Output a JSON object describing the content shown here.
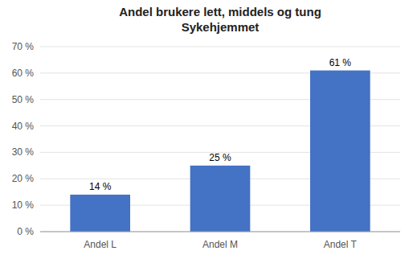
{
  "chart_data": {
    "type": "bar",
    "title": "Andel brukere lett, middels og tung",
    "subtitle": "Sykehjemmet",
    "categories": [
      "Andel L",
      "Andel M",
      "Andel T"
    ],
    "values": [
      14,
      25,
      61
    ],
    "value_labels": [
      "14 %",
      "25 %",
      "61 %"
    ],
    "data_labels": true,
    "color": "#4472C4",
    "ylim": [
      0,
      70
    ],
    "yticks": [
      {
        "value": 0,
        "label": "0 %"
      },
      {
        "value": 10,
        "label": "10 %"
      },
      {
        "value": 20,
        "label": "20 %"
      },
      {
        "value": 30,
        "label": "30 %"
      },
      {
        "value": 40,
        "label": "40 %"
      },
      {
        "value": 50,
        "label": "50 %"
      },
      {
        "value": 60,
        "label": "60 %"
      },
      {
        "value": 70,
        "label": "70 %"
      }
    ],
    "grid": true
  }
}
